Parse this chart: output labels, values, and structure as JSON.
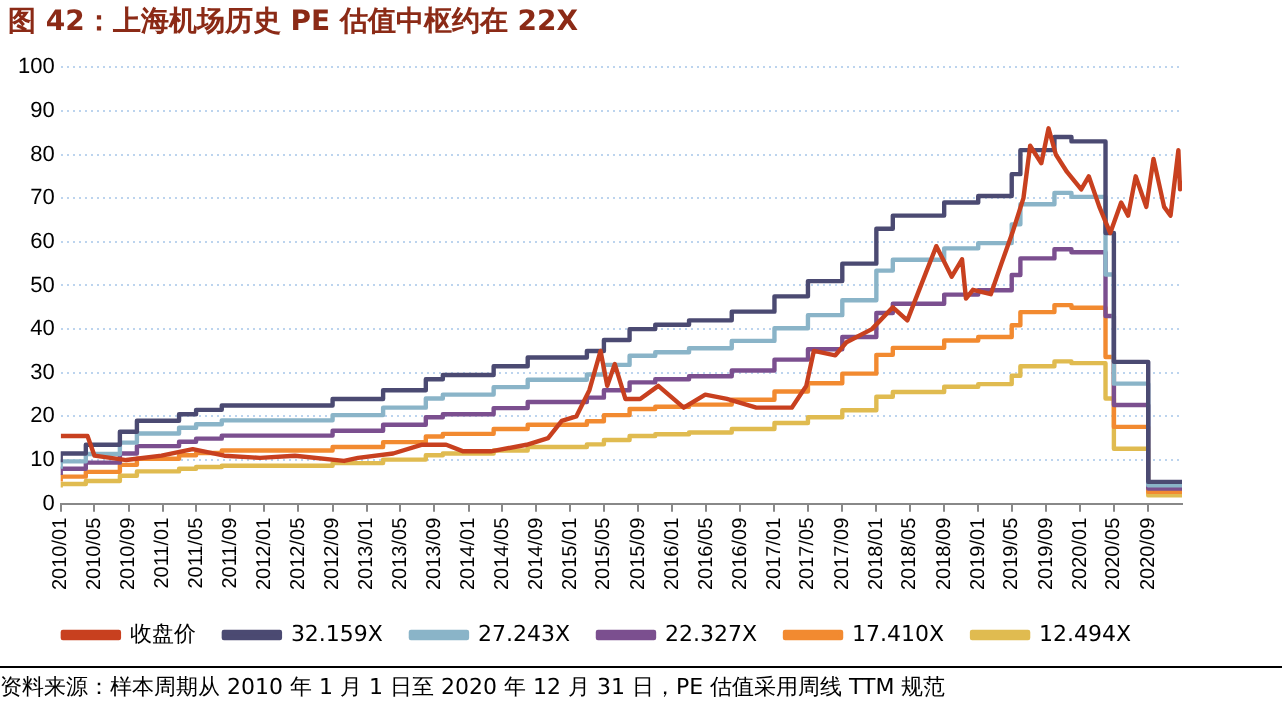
{
  "chart_data": {
    "type": "line",
    "title": "图 42：上海机场历史 PE 估值中枢约在 22X",
    "annotations": [
      "资料来源：样本周期从 2010 年 1 月 1 日至 2020 年 12 月 31 日，PE 估值采用周线 TTM 规范"
    ],
    "xlim": [
      "2010-01-01",
      "2020-12-31"
    ],
    "xticks": [
      {
        "value": "2010-01",
        "label": "2010/01"
      },
      {
        "value": "2010-05",
        "label": "2010/05"
      },
      {
        "value": "2010-09",
        "label": "2010/09"
      },
      {
        "value": "2011-01",
        "label": "2011/01"
      },
      {
        "value": "2011-05",
        "label": "2011/05"
      },
      {
        "value": "2011-09",
        "label": "2011/09"
      },
      {
        "value": "2012-01",
        "label": "2012/01"
      },
      {
        "value": "2012-05",
        "label": "2012/05"
      },
      {
        "value": "2012-09",
        "label": "2012/09"
      },
      {
        "value": "2013-01",
        "label": "2013/01"
      },
      {
        "value": "2013-05",
        "label": "2013/05"
      },
      {
        "value": "2013-09",
        "label": "2013/09"
      },
      {
        "value": "2014-01",
        "label": "2014/01"
      },
      {
        "value": "2014-05",
        "label": "2014/05"
      },
      {
        "value": "2014-09",
        "label": "2014/09"
      },
      {
        "value": "2015-01",
        "label": "2015/01"
      },
      {
        "value": "2015-05",
        "label": "2015/05"
      },
      {
        "value": "2015-09",
        "label": "2015/09"
      },
      {
        "value": "2016-01",
        "label": "2016/01"
      },
      {
        "value": "2016-05",
        "label": "2016/05"
      },
      {
        "value": "2016-09",
        "label": "2016/09"
      },
      {
        "value": "2017-01",
        "label": "2017/01"
      },
      {
        "value": "2017-05",
        "label": "2017/05"
      },
      {
        "value": "2017-09",
        "label": "2017/09"
      },
      {
        "value": "2018-01",
        "label": "2018/01"
      },
      {
        "value": "2018-05",
        "label": "2018/05"
      },
      {
        "value": "2018-09",
        "label": "2018/09"
      },
      {
        "value": "2019-01",
        "label": "2019/01"
      },
      {
        "value": "2019-05",
        "label": "2019/05"
      },
      {
        "value": "2019-09",
        "label": "2019/09"
      },
      {
        "value": "2020-01",
        "label": "2020/01"
      },
      {
        "value": "2020-05",
        "label": "2020/05"
      },
      {
        "value": "2020-09",
        "label": "2020/09"
      }
    ],
    "ylim": [
      0,
      100
    ],
    "yticks": [
      0,
      10,
      20,
      30,
      40,
      50,
      60,
      70,
      80,
      90,
      100
    ],
    "grid": "y",
    "legend": "bottom",
    "series": [
      {
        "name": "收盘价",
        "color": "#c8401f",
        "x": [
          "2010-01-01",
          "2010-04-07",
          "2010-05-02",
          "2010-08-24",
          "2010-12-28",
          "2011-04-19",
          "2011-08-10",
          "2011-12-16",
          "2012-04-19",
          "2012-10-12",
          "2012-12-01",
          "2013-04-06",
          "2013-07-16",
          "2013-10-13",
          "2013-12-13",
          "2014-03-22",
          "2014-07-28",
          "2014-10-13",
          "2014-12-01",
          "2015-01-22",
          "2015-03-10",
          "2015-04-19",
          "2015-05-13",
          "2015-06-09",
          "2015-07-17",
          "2015-09-08",
          "2015-11-12",
          "2016-02-11",
          "2016-04-28",
          "2016-07-15",
          "2016-10-28",
          "2017-03-04",
          "2017-04-25",
          "2017-05-22",
          "2017-08-07",
          "2017-09-16",
          "2017-12-16",
          "2018-03-01",
          "2018-04-22",
          "2018-06-28",
          "2018-08-04",
          "2018-09-28",
          "2018-11-04",
          "2018-11-18",
          "2018-12-13",
          "2019-02-15",
          "2019-03-25",
          "2019-05-03",
          "2019-06-12",
          "2019-07-06",
          "2019-08-15",
          "2019-09-10",
          "2019-10-06",
          "2019-11-15",
          "2020-01-05",
          "2020-02-01",
          "2020-03-10",
          "2020-04-18",
          "2020-05-27",
          "2020-06-21",
          "2020-07-18",
          "2020-08-25",
          "2020-09-20",
          "2020-10-28",
          "2020-11-20",
          "2020-12-18",
          "2020-12-24",
          "2020-12-31"
        ],
        "values": [
          15.5,
          15.5,
          11,
          10,
          11,
          12.5,
          11,
          10.5,
          11,
          9.8,
          10.5,
          11.5,
          13.5,
          13.5,
          12,
          12,
          13.5,
          15,
          19,
          20,
          26,
          35,
          27,
          32,
          24,
          24,
          27,
          22,
          25,
          24,
          22,
          22,
          27,
          35,
          34,
          37,
          40,
          45,
          42,
          53,
          59,
          52,
          56,
          47,
          49,
          48,
          55,
          62,
          70,
          82,
          78,
          86,
          80,
          76,
          72,
          75,
          68,
          62,
          69,
          66,
          75,
          68,
          79,
          68,
          66,
          81,
          72,
          74
        ]
      },
      {
        "name": "32.159X",
        "color": "#4b4a72",
        "type": "step",
        "x": [
          "2010-01-01",
          "2010-04-01",
          "2010-08-01",
          "2010-10-01",
          "2011-03-01",
          "2011-05-01",
          "2011-08-01",
          "2012-09-01",
          "2013-03-01",
          "2013-08-01",
          "2013-10-01",
          "2014-04-01",
          "2014-08-01",
          "2015-03-01",
          "2015-05-01",
          "2015-08-01",
          "2015-11-01",
          "2016-03-01",
          "2016-08-01",
          "2017-01-01",
          "2017-05-01",
          "2017-09-01",
          "2018-01-01",
          "2018-03-01",
          "2018-09-01",
          "2019-01-01",
          "2019-05-01",
          "2019-06-01",
          "2019-10-01",
          "2019-12-01",
          "2020-04-01",
          "2020-05-01",
          "2020-09-01",
          "2020-11-01",
          "2020-12-31"
        ],
        "values": [
          9.5,
          11.5,
          13.5,
          16.5,
          19,
          20.5,
          21.5,
          22.5,
          24,
          26,
          28.5,
          29.5,
          31.5,
          33.5,
          35,
          37.5,
          40,
          41,
          42,
          44,
          47.5,
          51,
          55,
          63,
          66,
          69,
          70.5,
          75.5,
          81,
          84,
          83,
          62,
          32.5,
          5,
          5
        ]
      },
      {
        "name": "27.243X",
        "color": "#8ab4c8",
        "type": "step",
        "x": [
          "2010-01-01",
          "2010-04-01",
          "2010-08-01",
          "2010-10-01",
          "2011-03-01",
          "2011-05-01",
          "2011-08-01",
          "2012-09-01",
          "2013-03-01",
          "2013-08-01",
          "2013-10-01",
          "2014-04-01",
          "2014-08-01",
          "2015-03-01",
          "2015-05-01",
          "2015-08-01",
          "2015-11-01",
          "2016-03-01",
          "2016-08-01",
          "2017-01-01",
          "2017-05-01",
          "2017-09-01",
          "2018-01-01",
          "2018-03-01",
          "2018-09-01",
          "2019-01-01",
          "2019-05-01",
          "2019-06-01",
          "2019-10-01",
          "2019-12-01",
          "2020-04-01",
          "2020-05-01",
          "2020-09-01",
          "2020-11-01",
          "2020-12-31"
        ],
        "values": [
          8.0,
          9.7,
          11.4,
          14.0,
          16.1,
          17.4,
          18.2,
          19.1,
          20.3,
          22.0,
          24.1,
          25.0,
          26.7,
          28.4,
          29.6,
          31.8,
          33.9,
          34.7,
          35.6,
          37.3,
          40.2,
          43.2,
          46.6,
          53.4,
          55.9,
          58.5,
          59.7,
          64.0,
          68.6,
          71.2,
          70.3,
          52.5,
          27.5,
          4.2,
          4.2
        ]
      },
      {
        "name": "22.327X",
        "color": "#7b4f8f",
        "type": "step",
        "x": [
          "2010-01-01",
          "2010-04-01",
          "2010-08-01",
          "2010-10-01",
          "2011-03-01",
          "2011-05-01",
          "2011-08-01",
          "2012-09-01",
          "2013-03-01",
          "2013-08-01",
          "2013-10-01",
          "2014-04-01",
          "2014-08-01",
          "2015-03-01",
          "2015-05-01",
          "2015-08-01",
          "2015-11-01",
          "2016-03-01",
          "2016-08-01",
          "2017-01-01",
          "2017-05-01",
          "2017-09-01",
          "2018-01-01",
          "2018-03-01",
          "2018-09-01",
          "2019-01-01",
          "2019-05-01",
          "2019-06-01",
          "2019-10-01",
          "2019-12-01",
          "2020-04-01",
          "2020-05-01",
          "2020-09-01",
          "2020-11-01",
          "2020-12-31"
        ],
        "values": [
          6.6,
          8.0,
          9.4,
          11.5,
          13.2,
          14.2,
          14.9,
          15.6,
          16.7,
          18.1,
          19.8,
          20.5,
          21.9,
          23.3,
          24.3,
          26.0,
          27.8,
          28.5,
          29.2,
          30.5,
          33.0,
          35.4,
          38.2,
          43.7,
          45.8,
          47.9,
          48.9,
          52.4,
          56.2,
          58.3,
          57.6,
          43.0,
          22.6,
          3.5,
          3.5
        ]
      },
      {
        "name": "17.410X",
        "color": "#f28a30",
        "type": "step",
        "x": [
          "2010-01-01",
          "2010-04-01",
          "2010-08-01",
          "2010-10-01",
          "2011-03-01",
          "2011-05-01",
          "2011-08-01",
          "2012-09-01",
          "2013-03-01",
          "2013-08-01",
          "2013-10-01",
          "2014-04-01",
          "2014-08-01",
          "2015-03-01",
          "2015-05-01",
          "2015-08-01",
          "2015-11-01",
          "2016-03-01",
          "2016-08-01",
          "2017-01-01",
          "2017-05-01",
          "2017-09-01",
          "2018-01-01",
          "2018-03-01",
          "2018-09-01",
          "2019-01-01",
          "2019-05-01",
          "2019-06-01",
          "2019-10-01",
          "2019-12-01",
          "2020-04-01",
          "2020-05-01",
          "2020-09-01",
          "2020-11-01",
          "2020-12-31"
        ],
        "values": [
          5.1,
          6.2,
          7.3,
          8.9,
          10.3,
          11.1,
          11.6,
          12.2,
          13.0,
          14.1,
          15.4,
          16.0,
          17.1,
          18.1,
          18.9,
          20.3,
          21.7,
          22.2,
          22.7,
          23.8,
          25.7,
          27.6,
          29.8,
          34.1,
          35.7,
          37.4,
          38.2,
          40.9,
          43.9,
          45.5,
          44.9,
          33.6,
          17.6,
          2.7,
          2.7
        ]
      },
      {
        "name": "12.494X",
        "color": "#e0bb50",
        "type": "step",
        "x": [
          "2010-01-01",
          "2010-04-01",
          "2010-08-01",
          "2010-10-01",
          "2011-03-01",
          "2011-05-01",
          "2011-08-01",
          "2012-09-01",
          "2013-03-01",
          "2013-08-01",
          "2013-10-01",
          "2014-04-01",
          "2014-08-01",
          "2015-03-01",
          "2015-05-01",
          "2015-08-01",
          "2015-11-01",
          "2016-03-01",
          "2016-08-01",
          "2017-01-01",
          "2017-05-01",
          "2017-09-01",
          "2018-01-01",
          "2018-03-01",
          "2018-09-01",
          "2019-01-01",
          "2019-05-01",
          "2019-06-01",
          "2019-10-01",
          "2019-12-01",
          "2020-04-01",
          "2020-05-01",
          "2020-09-01",
          "2020-11-01",
          "2020-12-31"
        ],
        "values": [
          3.7,
          4.5,
          5.2,
          6.4,
          7.4,
          8.0,
          8.4,
          8.7,
          9.3,
          10.1,
          11.1,
          11.5,
          12.2,
          13.0,
          13.6,
          14.6,
          15.5,
          15.9,
          16.3,
          17.1,
          18.5,
          19.8,
          21.4,
          24.5,
          25.6,
          26.8,
          27.4,
          29.3,
          31.5,
          32.6,
          32.2,
          24.1,
          12.6,
          1.9,
          1.9
        ]
      }
    ]
  }
}
